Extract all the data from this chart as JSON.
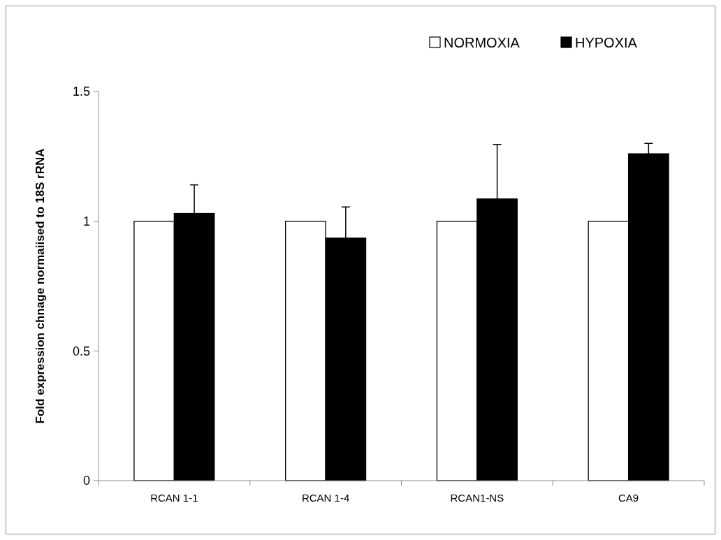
{
  "chart_data": {
    "type": "bar",
    "ylabel": "Fold expression chnage normaiised to 18S rRNA",
    "categories": [
      "RCAN 1-1",
      "RCAN 1-4",
      "RCAN1-NS",
      "CA9"
    ],
    "series": [
      {
        "name": "NORMOXIA",
        "color": "#ffffff",
        "values": [
          1,
          1,
          1,
          1
        ]
      },
      {
        "name": "HYPOXIA",
        "color": "#000000",
        "values": [
          1.03,
          0.935,
          1.086,
          1.26
        ],
        "errors": [
          [
            1.03,
            1.14
          ],
          [
            0.935,
            1.055
          ],
          [
            1.086,
            1.296
          ],
          [
            1.26,
            1.3
          ]
        ]
      }
    ],
    "ylim": [
      0,
      1.5
    ],
    "yticks": [
      0,
      0.5,
      1,
      1.5
    ],
    "grid": false,
    "legend": "top right"
  }
}
